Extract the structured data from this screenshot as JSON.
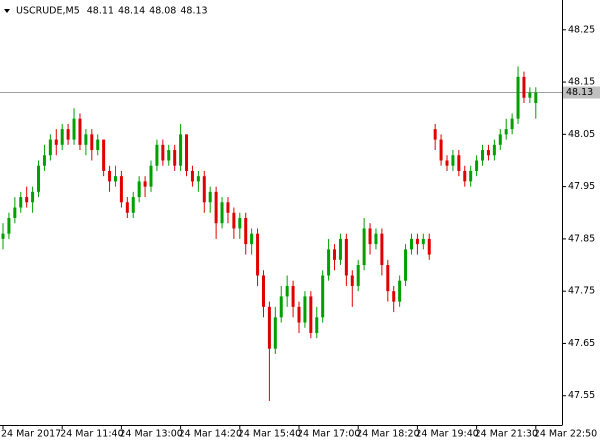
{
  "chart_data": {
    "type": "candlestick",
    "header": {
      "symbol": "USCRUDE,M5",
      "open": 48.11,
      "high": 48.14,
      "low": 48.08,
      "close": 48.13
    },
    "categories": [
      "24 Mar 2017",
      null,
      null,
      null,
      null,
      null,
      null,
      null,
      null,
      null,
      "24 Mar 11:40",
      null,
      null,
      null,
      null,
      null,
      null,
      null,
      null,
      null,
      "24 Mar 13:00",
      null,
      null,
      null,
      null,
      null,
      null,
      null,
      null,
      null,
      "24 Mar 14:20",
      null,
      null,
      null,
      null,
      null,
      null,
      null,
      null,
      null,
      "24 Mar 15:40",
      null,
      null,
      null,
      null,
      null,
      null,
      null,
      null,
      null,
      "24 Mar 17:00",
      null,
      null,
      null,
      null,
      null,
      null,
      null,
      null,
      null,
      "24 Mar 18:20",
      null,
      null,
      null,
      null,
      null,
      null,
      null,
      null,
      null,
      "24 Mar 19:40",
      null,
      null,
      null,
      null,
      null,
      null,
      null,
      null,
      null,
      "24 Mar 21:30",
      null,
      null,
      null,
      null,
      null,
      null,
      null,
      null,
      null,
      "24 Mar 22:50"
    ],
    "open": [
      47.85,
      47.86,
      47.89,
      47.91,
      47.93,
      47.92,
      47.94,
      47.99,
      48.01,
      48.04,
      48.03,
      48.06,
      48.04,
      48.08,
      48.03,
      48.05,
      48.02,
      48.04,
      47.98,
      47.96,
      47.97,
      47.92,
      47.9,
      47.93,
      47.96,
      47.95,
      47.99,
      48.03,
      48.0,
      48.02,
      47.99,
      48.05,
      47.98,
      47.96,
      47.97,
      47.92,
      47.94,
      47.88,
      47.92,
      47.9,
      47.87,
      47.89,
      47.84,
      47.86,
      47.78,
      47.72,
      47.64,
      47.7,
      47.74,
      47.76,
      47.72,
      47.69,
      47.74,
      47.67,
      47.7,
      47.78,
      47.83,
      47.81,
      47.85,
      47.78,
      47.76,
      47.8,
      47.87,
      47.84,
      47.86,
      47.8,
      47.75,
      47.73,
      47.77,
      47.83,
      47.85,
      47.84,
      47.85,
      48.06,
      48.04,
      48.0,
      47.99,
      48.01,
      47.98,
      47.96,
      47.98,
      48.0,
      48.02,
      48.01,
      48.03,
      48.05,
      48.06,
      48.08,
      48.16,
      48.12,
      48.11
    ],
    "high": [
      47.88,
      47.9,
      47.93,
      47.94,
      47.95,
      47.95,
      48.0,
      48.03,
      48.05,
      48.06,
      48.07,
      48.07,
      48.1,
      48.09,
      48.06,
      48.06,
      48.05,
      48.04,
      47.99,
      47.99,
      47.98,
      47.93,
      47.94,
      47.97,
      47.97,
      48.0,
      48.04,
      48.04,
      48.03,
      48.03,
      48.07,
      48.05,
      47.99,
      47.98,
      47.98,
      47.95,
      47.95,
      47.93,
      47.93,
      47.91,
      47.9,
      47.9,
      47.87,
      47.87,
      47.79,
      47.73,
      47.72,
      47.76,
      47.78,
      47.77,
      47.73,
      47.75,
      47.75,
      47.72,
      47.79,
      47.85,
      47.84,
      47.86,
      47.86,
      47.79,
      47.81,
      47.89,
      47.88,
      47.87,
      47.87,
      47.81,
      47.76,
      47.78,
      47.84,
      47.86,
      47.86,
      47.86,
      47.86,
      48.07,
      48.05,
      48.01,
      48.02,
      48.02,
      47.99,
      47.99,
      48.01,
      48.03,
      48.03,
      48.04,
      48.06,
      48.08,
      48.09,
      48.18,
      48.17,
      48.14,
      48.14
    ],
    "low": [
      47.83,
      47.85,
      47.88,
      47.9,
      47.91,
      47.9,
      47.93,
      47.98,
      48.0,
      48.01,
      48.02,
      48.03,
      48.03,
      48.02,
      48.01,
      48.0,
      48.01,
      47.97,
      47.94,
      47.95,
      47.91,
      47.89,
      47.89,
      47.92,
      47.93,
      47.94,
      47.98,
      47.99,
      47.99,
      47.98,
      47.98,
      47.97,
      47.95,
      47.94,
      47.9,
      47.9,
      47.85,
      47.87,
      47.88,
      47.85,
      47.85,
      47.82,
      47.82,
      47.76,
      47.7,
      47.54,
      47.63,
      47.69,
      47.72,
      47.7,
      47.67,
      47.68,
      47.66,
      47.66,
      47.69,
      47.77,
      47.79,
      47.8,
      47.76,
      47.72,
      47.75,
      47.79,
      47.82,
      47.83,
      47.78,
      47.73,
      47.71,
      47.72,
      47.76,
      47.82,
      47.82,
      47.83,
      47.81,
      48.02,
      47.99,
      47.98,
      47.98,
      47.97,
      47.95,
      47.95,
      47.97,
      47.99,
      48.0,
      48.0,
      48.02,
      48.04,
      48.05,
      48.07,
      48.11,
      48.11,
      48.08
    ],
    "close": [
      47.86,
      47.89,
      47.91,
      47.93,
      47.92,
      47.94,
      47.99,
      48.01,
      48.04,
      48.03,
      48.06,
      48.04,
      48.08,
      48.03,
      48.05,
      48.02,
      48.04,
      47.98,
      47.96,
      47.97,
      47.92,
      47.9,
      47.93,
      47.96,
      47.95,
      47.99,
      48.03,
      48.0,
      48.02,
      47.99,
      48.05,
      47.98,
      47.96,
      47.97,
      47.92,
      47.94,
      47.88,
      47.92,
      47.9,
      47.87,
      47.89,
      47.84,
      47.86,
      47.78,
      47.72,
      47.64,
      47.7,
      47.74,
      47.76,
      47.72,
      47.69,
      47.74,
      47.67,
      47.7,
      47.78,
      47.83,
      47.81,
      47.85,
      47.78,
      47.76,
      47.8,
      47.87,
      47.84,
      47.86,
      47.8,
      47.75,
      47.73,
      47.77,
      47.83,
      47.85,
      47.84,
      47.85,
      47.82,
      48.04,
      48.0,
      47.99,
      48.01,
      47.98,
      47.96,
      47.98,
      48.0,
      48.02,
      48.01,
      48.03,
      48.05,
      48.06,
      48.08,
      48.16,
      48.12,
      48.13,
      48.13
    ],
    "up_color": "#00a000",
    "down_color": "#e00000",
    "price_line": 48.13,
    "ylim": [
      47.494,
      48.307
    ],
    "yticks": [
      48.25,
      48.15,
      48.05,
      47.95,
      47.85,
      47.75,
      47.65,
      47.55
    ]
  }
}
